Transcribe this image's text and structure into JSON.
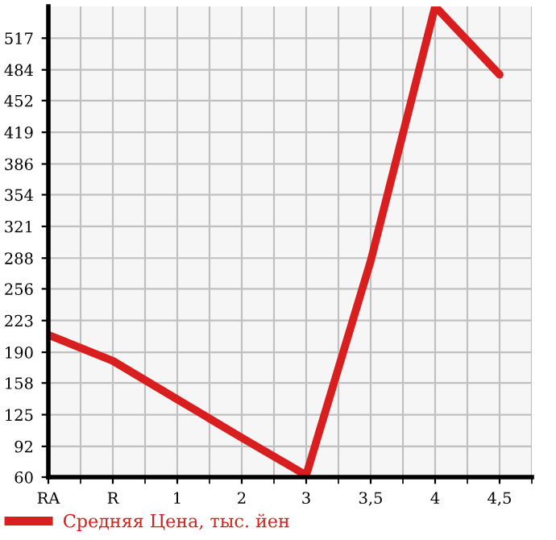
{
  "chart_data": {
    "type": "line",
    "categories": [
      "RA",
      "R",
      "1",
      "2",
      "3",
      "3,5",
      "4",
      "4,5"
    ],
    "series": [
      {
        "name": "Средняя Цена, тыс. йен",
        "color": "#d81e1e",
        "values": [
          208,
          181,
          141,
          101,
          62,
          285,
          550,
          479
        ]
      }
    ],
    "ylim": [
      60,
      550
    ],
    "yticks": [
      60,
      92,
      125,
      158,
      190,
      223,
      256,
      288,
      321,
      354,
      386,
      419,
      452,
      484,
      517
    ],
    "grid": true,
    "legend": "bottom left",
    "marker": "none",
    "line_style": "solid"
  }
}
